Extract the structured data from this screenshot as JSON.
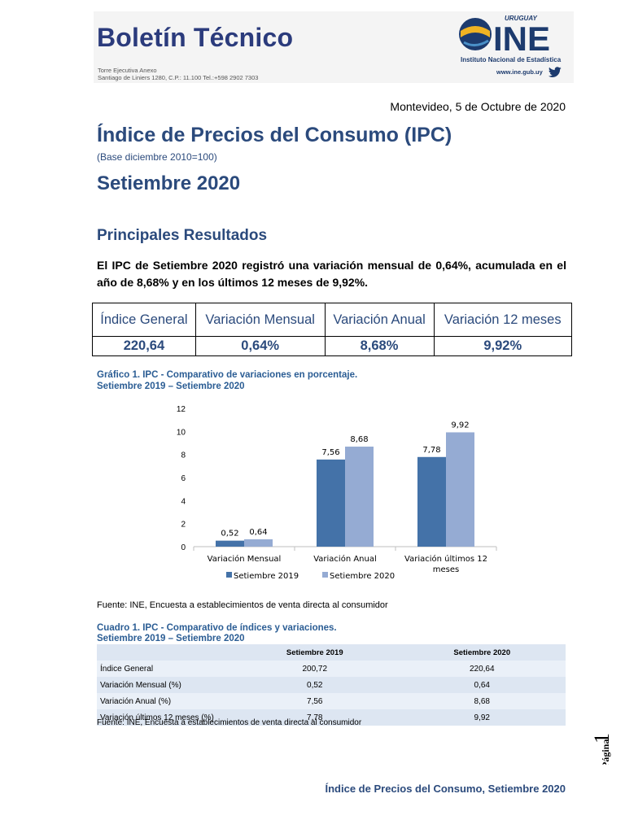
{
  "header": {
    "title": "Boletín Técnico",
    "address_line1": "Torre Ejecutiva Anexo",
    "address_line2": "Santiago de Liniers 1280, C.P.: 11.100 Tel.:+598 2902 7303",
    "logo_country": "URUGUAY",
    "logo_text": "INE",
    "logo_subtitle": "Instituto Nacional de Estadística",
    "website": "www.ine.gub.uy"
  },
  "date_line": "Montevideo, 5 de Octubre de 2020",
  "main_title": "Índice de Precios del Consumo (IPC)",
  "base_note": "(Base diciembre 2010=100)",
  "period": "Setiembre 2020",
  "section_title": "Principales Resultados",
  "lead_text": "El IPC de Setiembre 2020 registró una variación mensual de 0,64%, acumulada en el año de 8,68% y en los últimos 12 meses de 9,92%.",
  "summary_table": {
    "headers": [
      "Índice General",
      "Variación Mensual",
      "Variación Anual",
      "Variación 12 meses"
    ],
    "values": [
      "220,64",
      "0,64%",
      "8,68%",
      "9,92%"
    ]
  },
  "figure_caption": {
    "line1": "Gráfico 1. IPC - Comparativo de variaciones en porcentaje.",
    "line2": "Setiembre 2019 – Setiembre 2020"
  },
  "chart_data": {
    "type": "bar",
    "categories": [
      "Variación Mensual",
      "Variación  Anual",
      "Variación últimos 12 meses"
    ],
    "series": [
      {
        "name": "Setiembre 2019",
        "values": [
          0.52,
          7.56,
          7.78
        ],
        "labels": [
          "0,52",
          "7,56",
          "7,78"
        ],
        "color": "#4472a8"
      },
      {
        "name": "Setiembre 2020",
        "values": [
          0.64,
          8.68,
          9.92
        ],
        "labels": [
          "0,64",
          "8,68",
          "9,92"
        ],
        "color": "#95abd3"
      }
    ],
    "ylim": [
      0,
      12
    ],
    "yticks": [
      0,
      2,
      4,
      6,
      8,
      10,
      12
    ],
    "grid": false,
    "legend": "bottom"
  },
  "source_note": "Fuente: INE, Encuesta a establecimientos de venta directa al consumidor",
  "table_caption": {
    "line1": "Cuadro 1. IPC - Comparativo de índices y variaciones.",
    "line2": "Setiembre 2019 – Setiembre 2020"
  },
  "comparison_table": {
    "headers": [
      "",
      "Setiembre 2019",
      "Setiembre 2020"
    ],
    "rows": [
      [
        "Índice General",
        "200,72",
        "220,64"
      ],
      [
        "Variación Mensual (%)",
        "0,52",
        "0,64"
      ],
      [
        "Variación  Anual (%)",
        "7,56",
        "8,68"
      ],
      [
        "Variación últimos 12 meses (%)",
        "7,78",
        "9,92"
      ]
    ]
  },
  "page_label": "Página",
  "page_number": "1",
  "footer": "Índice de Precios del Consumo, Setiembre 2020",
  "colors": {
    "title_blue": "#2b4a7c",
    "caption_blue": "#2b5d94",
    "bar_2019": "#4472a8",
    "bar_2020": "#95abd3",
    "table_bg": "#dde6f2"
  }
}
